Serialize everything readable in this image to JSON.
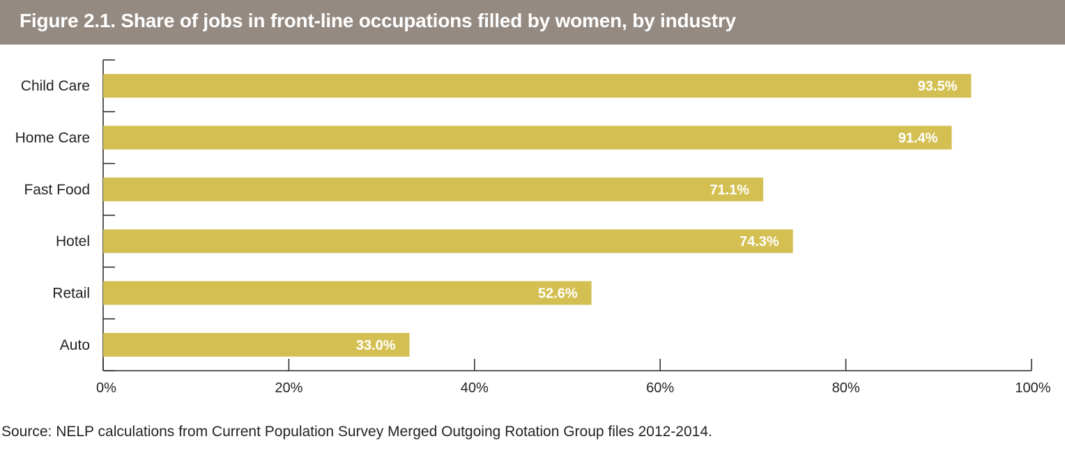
{
  "figure": {
    "title": "Figure 2.1. Share of jobs in front-line occupations filled by women, by industry",
    "source": "Source: NELP calculations from Current Population Survey Merged Outgoing Rotation Group files 2012-2014."
  },
  "colors": {
    "header_bg": "#958a82",
    "bar": "#d4c052",
    "value_text": "#ffffff",
    "axis": "#222222"
  },
  "chart_data": {
    "type": "bar",
    "orientation": "horizontal",
    "categories": [
      "Child Care",
      "Home Care",
      "Fast Food",
      "Hotel",
      "Retail",
      "Auto"
    ],
    "values": [
      93.5,
      91.4,
      71.1,
      74.3,
      52.6,
      33.0
    ],
    "value_labels": [
      "93.5%",
      "91.4%",
      "71.1%",
      "74.3%",
      "52.6%",
      "33.0%"
    ],
    "xlim": [
      0,
      100
    ],
    "x_ticks": [
      0,
      20,
      40,
      60,
      80,
      100
    ],
    "x_tick_labels": [
      "0%",
      "20%",
      "40%",
      "60%",
      "80%",
      "100%"
    ],
    "xlabel": "",
    "ylabel": "",
    "grid": false,
    "legend": "none"
  }
}
